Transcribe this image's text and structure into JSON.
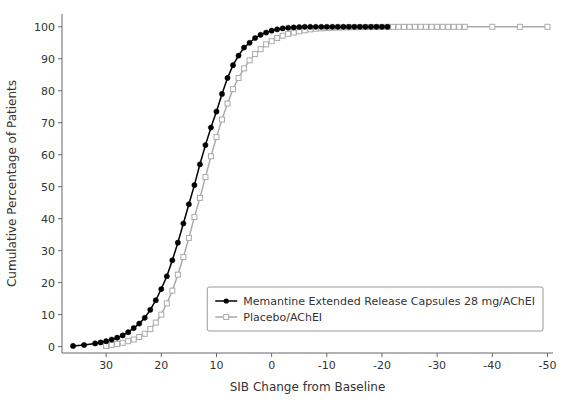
{
  "chart_data": {
    "type": "line",
    "xlabel": "SIB Change from Baseline",
    "ylabel": "Cumulative Percentage of Patients",
    "xlim": [
      38,
      -51
    ],
    "ylim": [
      -2,
      104
    ],
    "xticks": [
      30,
      20,
      10,
      0,
      -10,
      -20,
      -30,
      -40,
      -50
    ],
    "yticks": [
      0,
      10,
      20,
      30,
      40,
      50,
      60,
      70,
      80,
      90,
      100
    ],
    "grid": false,
    "legend": "lower right",
    "series": [
      {
        "name": "Memantine Extended Release Capsules 28 mg/AChEI",
        "color": "#000000",
        "marker": "circle",
        "x": [
          36,
          34,
          32,
          31,
          30,
          29,
          28,
          27,
          26,
          25,
          24,
          23,
          22,
          21,
          20,
          19,
          18,
          17,
          16,
          15,
          14,
          13,
          12,
          11,
          10,
          9,
          8,
          7,
          6,
          5,
          4,
          3,
          2,
          1,
          0,
          -1,
          -2,
          -3,
          -4,
          -5,
          -6,
          -7,
          -8,
          -9,
          -10,
          -11,
          -12,
          -13,
          -14,
          -15,
          -16,
          -17,
          -18,
          -19,
          -20,
          -21
        ],
        "values": [
          0.2,
          0.5,
          1.0,
          1.3,
          1.7,
          2.2,
          2.8,
          3.5,
          4.5,
          5.8,
          7.2,
          9.0,
          11.5,
          14.5,
          18.0,
          22.0,
          27.0,
          32.5,
          38.5,
          44.5,
          50.5,
          57.0,
          63.0,
          68.5,
          73.5,
          79.0,
          84.0,
          88.0,
          91.0,
          93.5,
          95.0,
          96.5,
          97.5,
          98.2,
          98.8,
          99.2,
          99.5,
          99.7,
          99.8,
          99.9,
          100.0,
          100.0,
          100.0,
          100.0,
          100.0,
          100.0,
          100.0,
          100.0,
          100.0,
          100.0,
          100.0,
          100.0,
          100.0,
          100.0,
          100.0,
          100.0
        ]
      },
      {
        "name": "Placebo/AChEI",
        "color": "#aaaaaa",
        "marker": "square",
        "x": [
          30,
          29,
          28,
          27,
          26,
          25,
          24,
          23,
          22,
          21,
          20,
          19,
          18,
          17,
          16,
          15,
          14,
          13,
          12,
          11,
          10,
          9,
          8,
          7,
          6,
          5,
          4,
          3,
          2,
          1,
          0,
          -1,
          -2,
          -3,
          -4,
          -5,
          -6,
          -7,
          -8,
          -9,
          -10,
          -11,
          -12,
          -13,
          -14,
          -15,
          -16,
          -17,
          -18,
          -19,
          -20,
          -21,
          -22,
          -23,
          -24,
          -25,
          -26,
          -27,
          -28,
          -29,
          -30,
          -31,
          -32,
          -33,
          -34,
          -35,
          -40,
          -45,
          -50
        ],
        "values": [
          0.2,
          0.5,
          0.8,
          1.2,
          1.7,
          2.2,
          3.0,
          4.0,
          5.5,
          7.5,
          10.0,
          13.5,
          17.5,
          22.5,
          28.0,
          34.0,
          40.5,
          46.5,
          53.0,
          59.5,
          65.5,
          71.0,
          76.0,
          80.5,
          84.0,
          87.0,
          89.5,
          91.5,
          93.0,
          94.5,
          95.5,
          96.5,
          97.2,
          97.8,
          98.2,
          98.6,
          98.9,
          99.2,
          99.4,
          99.5,
          99.6,
          99.7,
          99.75,
          99.8,
          99.83,
          99.86,
          99.88,
          99.9,
          99.92,
          99.94,
          99.96,
          99.97,
          99.98,
          99.98,
          99.99,
          99.99,
          100.0,
          100.0,
          100.0,
          100.0,
          100.0,
          100.0,
          100.0,
          100.0,
          100.0,
          100.0,
          100.0,
          100.0,
          100.0
        ]
      }
    ]
  }
}
